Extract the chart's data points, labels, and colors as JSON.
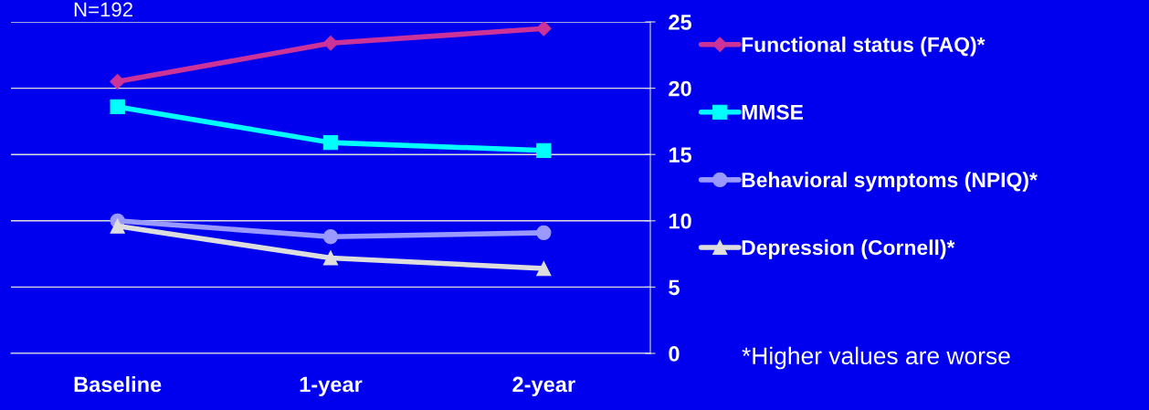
{
  "chart_data": {
    "type": "line",
    "title": "N=192",
    "categories": [
      "Baseline",
      "1-year",
      "2-year"
    ],
    "series": [
      {
        "name": "Functional status (FAQ)*",
        "color": "#cc3399",
        "marker": "diamond",
        "values": [
          20.5,
          23.4,
          24.5
        ]
      },
      {
        "name": "MMSE",
        "color": "#00ffff",
        "marker": "square",
        "values": [
          18.6,
          15.9,
          15.3
        ]
      },
      {
        "name": "Behavioral symptoms (NPIQ)*",
        "color": "#9999ff",
        "marker": "circle",
        "values": [
          10.0,
          8.8,
          9.1
        ]
      },
      {
        "name": "Depression (Cornell)*",
        "color": "#dddddd",
        "marker": "triangle",
        "values": [
          9.6,
          7.2,
          6.4
        ]
      }
    ],
    "ylim": [
      0,
      25
    ],
    "yticks": [
      0,
      5,
      10,
      15,
      20,
      25
    ],
    "grid": "y",
    "legend": "right",
    "annotations": [
      "*Higher values are worse"
    ]
  }
}
